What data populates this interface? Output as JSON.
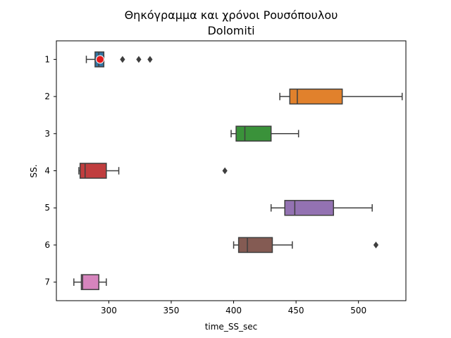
{
  "chart_data": {
    "type": "boxplot",
    "orientation": "horizontal",
    "title_line1": "Θηκόγραμμα και χρόνοι Ρουσόπουλου",
    "title_line2": "Dolomiti",
    "xlabel": "time_SS_sec",
    "ylabel": "SS.",
    "xlim": [
      258,
      538
    ],
    "xticks": [
      300,
      350,
      400,
      450,
      500
    ],
    "categories": [
      "1",
      "2",
      "3",
      "4",
      "5",
      "6",
      "7"
    ],
    "grid": false,
    "boxes": [
      {
        "category": "1",
        "color": "#3274a1",
        "whisker_low": 282,
        "q1": 289,
        "median": 292,
        "q3": 296,
        "whisker_high": 296,
        "outliers": [
          311,
          324,
          333
        ],
        "highlight": 293,
        "highlight_color": "#e31a1c"
      },
      {
        "category": "2",
        "color": "#e1812c",
        "whisker_low": 437,
        "q1": 445,
        "median": 451,
        "q3": 487,
        "whisker_high": 535,
        "outliers": []
      },
      {
        "category": "3",
        "color": "#3a923a",
        "whisker_low": 398,
        "q1": 402,
        "median": 409,
        "q3": 430,
        "whisker_high": 452,
        "outliers": []
      },
      {
        "category": "4",
        "color": "#c03d3e",
        "whisker_low": 276,
        "q1": 277,
        "median": 281,
        "q3": 298,
        "whisker_high": 308,
        "outliers": [
          393
        ]
      },
      {
        "category": "5",
        "color": "#9372b2",
        "whisker_low": 430,
        "q1": 441,
        "median": 449,
        "q3": 480,
        "whisker_high": 511,
        "outliers": []
      },
      {
        "category": "6",
        "color": "#845b53",
        "whisker_low": 400,
        "q1": 404,
        "median": 411,
        "q3": 431,
        "whisker_high": 447,
        "outliers": [
          514
        ]
      },
      {
        "category": "7",
        "color": "#d684bd",
        "whisker_low": 272,
        "q1": 278,
        "median": 279,
        "q3": 292,
        "whisker_high": 298,
        "outliers": []
      }
    ]
  }
}
